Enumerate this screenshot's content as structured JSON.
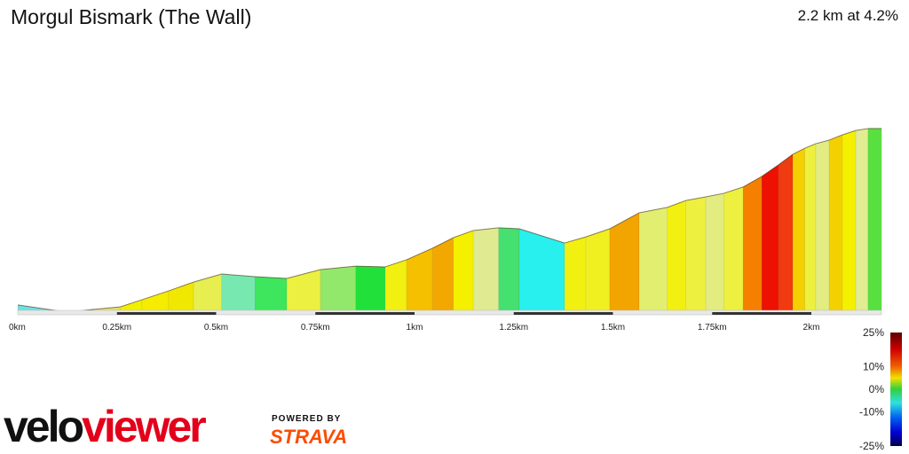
{
  "title": "Morgul Bismark (The Wall)",
  "summary": "2.2 km at 4.2%",
  "branding": {
    "logo_part1": "velo",
    "logo_part2": "viewer",
    "powered_by": "POWERED BY",
    "strava": "STRAVA"
  },
  "chart_data": {
    "type": "area",
    "xlabel": "",
    "ylabel": "",
    "x_ticks": [
      {
        "km": 0,
        "label": "0km"
      },
      {
        "km": 0.25,
        "label": "0.25km"
      },
      {
        "km": 0.5,
        "label": "0.5km"
      },
      {
        "km": 0.75,
        "label": "0.75km"
      },
      {
        "km": 1,
        "label": "1km"
      },
      {
        "km": 1.25,
        "label": "1.25km"
      },
      {
        "km": 1.5,
        "label": "1.5km"
      },
      {
        "km": 1.75,
        "label": "1.75km"
      },
      {
        "km": 2,
        "label": "2km"
      }
    ],
    "distance_km": [
      0,
      0.124,
      0.191,
      0.258,
      0.313,
      0.38,
      0.443,
      0.514,
      0.598,
      0.678,
      0.763,
      0.852,
      0.926,
      0.98,
      1.045,
      1.098,
      1.148,
      1.212,
      1.264,
      1.378,
      1.432,
      1.492,
      1.566,
      1.637,
      1.684,
      1.734,
      1.779,
      1.828,
      1.875,
      1.917,
      1.953,
      1.984,
      2.011,
      2.045,
      2.078,
      2.112,
      2.143,
      2.177
    ],
    "elevation_rel_m": [
      2.8,
      -0.9,
      0.5,
      1.8,
      5.5,
      10.1,
      14.7,
      18.9,
      17.5,
      16.6,
      21.2,
      23.0,
      22.6,
      26.3,
      32.3,
      37.8,
      41.5,
      42.9,
      42.4,
      35.0,
      38.2,
      42.4,
      50.7,
      53.5,
      57.1,
      59.0,
      60.8,
      64.1,
      69.6,
      75.6,
      81.1,
      84.3,
      86.6,
      88.5,
      91.2,
      93.5,
      94.5,
      94.5
    ],
    "segment_colors": [
      "#6fe0e0",
      "#8ad838",
      "#e0e070",
      "#f2f000",
      "#f5ec00",
      "#f0e800",
      "#e6ee50",
      "#77e8b0",
      "#3ee65e",
      "#ecf040",
      "#92e86a",
      "#22e03a",
      "#f2f010",
      "#f5c000",
      "#f2a800",
      "#f4f000",
      "#e0ea90",
      "#44e070",
      "#28f0ee",
      "#f2f010",
      "#f0f020",
      "#f2a400",
      "#e2ee70",
      "#f2f010",
      "#eef040",
      "#e2ec80",
      "#eef040",
      "#f58000",
      "#ee1000",
      "#f03a10",
      "#f4d000",
      "#eef040",
      "#e2ec80",
      "#f4d000",
      "#f4f000",
      "#e2ec90",
      "#58e040"
    ],
    "legend": {
      "labels": [
        "25%",
        "10%",
        "0%",
        "-10%",
        "-25%"
      ],
      "values": [
        25,
        10,
        0,
        -10,
        -25
      ]
    }
  }
}
